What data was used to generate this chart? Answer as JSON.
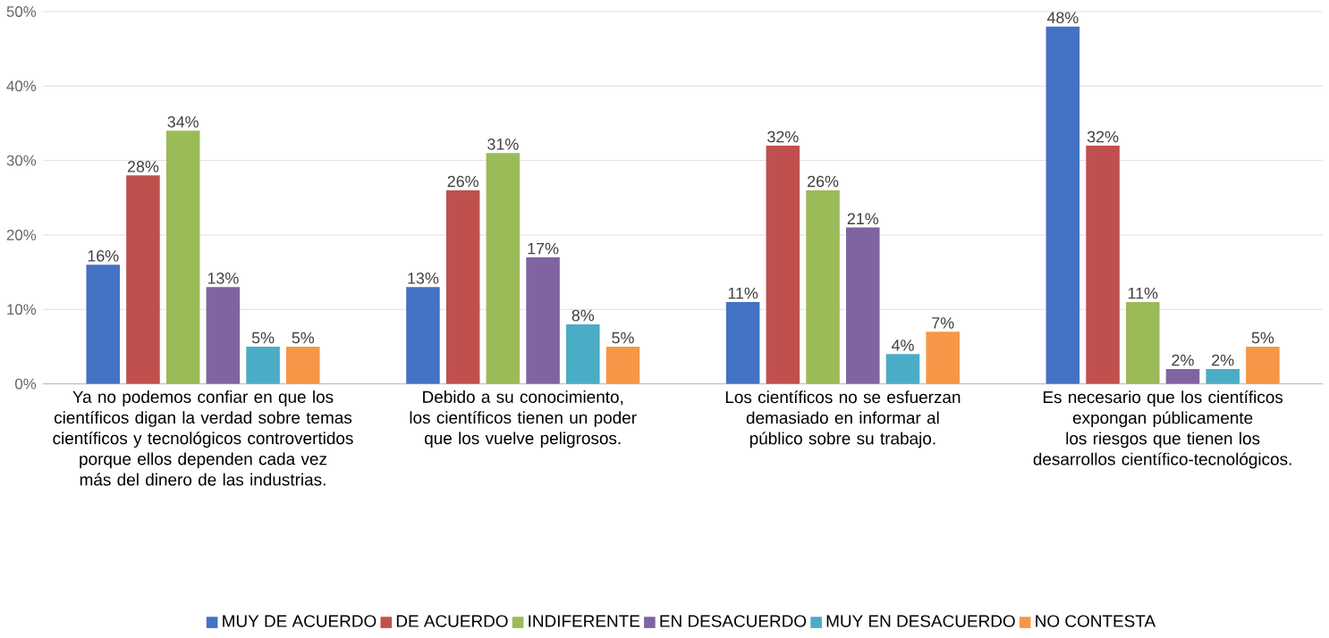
{
  "chart_data": {
    "type": "bar",
    "categories": [
      "Ya no podemos confiar en que los científicos digan la verdad sobre temas científicos y tecnológicos controvertidos porque ellos dependen cada vez más del dinero de las industrias.",
      "Debido a su conocimiento, los científicos tienen un poder que los vuelve peligrosos.",
      "Los científicos no se esfuerzan demasiado en informar al público sobre su trabajo.",
      "Es necesario que los científicos expongan públicamente los riesgos que tienen los desarrollos científico-tecnológicos."
    ],
    "series": [
      {
        "name": "MUY DE ACUERDO",
        "color": "#4472c4",
        "values": [
          16,
          13,
          11,
          48
        ],
        "value_labels": [
          "16%",
          "13%",
          "11%",
          "48%"
        ]
      },
      {
        "name": "DE ACUERDO",
        "color": "#c0504d",
        "values": [
          28,
          26,
          32,
          32
        ],
        "value_labels": [
          "28%",
          "26%",
          "32%",
          "32%"
        ]
      },
      {
        "name": "INDIFERENTE",
        "color": "#9bbb59",
        "values": [
          34,
          31,
          26,
          11
        ],
        "value_labels": [
          "34%",
          "31%",
          "26%",
          "11%"
        ]
      },
      {
        "name": "EN DESACUERDO",
        "color": "#8064a2",
        "values": [
          13,
          17,
          21,
          2
        ],
        "value_labels": [
          "13%",
          "17%",
          "21%",
          "2%"
        ]
      },
      {
        "name": "MUY EN DESACUERDO",
        "color": "#4bacc6",
        "values": [
          5,
          8,
          4,
          2
        ],
        "value_labels": [
          "5%",
          "8%",
          "4%",
          "2%"
        ]
      },
      {
        "name": "NO CONTESTA",
        "color": "#f79646",
        "values": [
          5,
          5,
          7,
          5
        ],
        "value_labels": [
          "5%",
          "5%",
          "7%",
          "5%"
        ]
      }
    ],
    "ylim": [
      0,
      50
    ],
    "yticks": [
      {
        "value": 0,
        "label": "0%"
      },
      {
        "value": 10,
        "label": "10%"
      },
      {
        "value": 20,
        "label": "20%"
      },
      {
        "value": 30,
        "label": "30%"
      },
      {
        "value": 40,
        "label": "40%"
      },
      {
        "value": 50,
        "label": "50%"
      }
    ],
    "grid": "y",
    "legend": "bottom"
  }
}
